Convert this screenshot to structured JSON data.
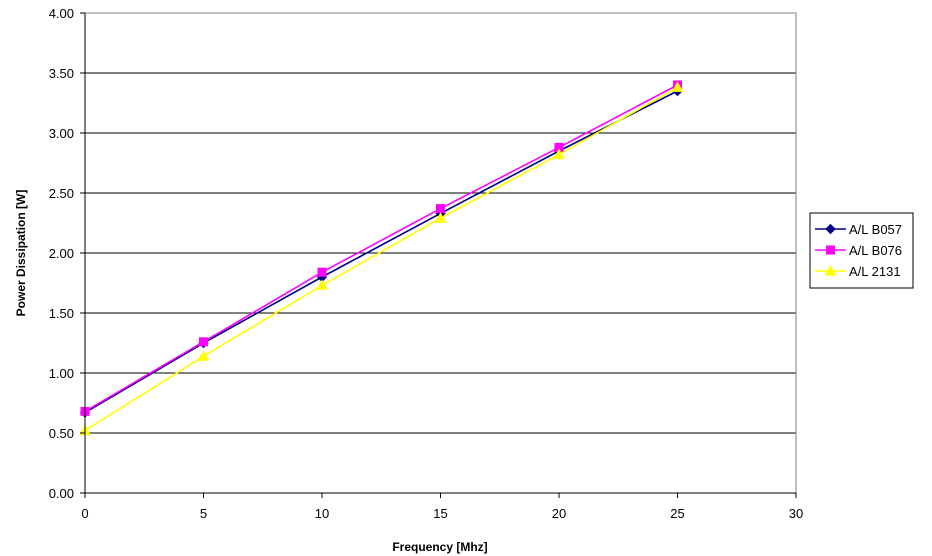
{
  "chart_data": {
    "type": "line",
    "title": "",
    "xlabel": "Frequency [Mhz]",
    "ylabel": "Power Dissipation [W]",
    "xlim": [
      0,
      30
    ],
    "ylim": [
      0,
      4
    ],
    "x_ticks": [
      0,
      5,
      10,
      15,
      20,
      25,
      30
    ],
    "y_ticks": [
      0,
      0.5,
      1,
      1.5,
      2,
      2.5,
      3,
      3.5,
      4
    ],
    "x_tick_labels": [
      "0",
      "5",
      "10",
      "15",
      "20",
      "25",
      "30"
    ],
    "y_tick_labels": [
      "0.00",
      "0.50",
      "1.00",
      "1.50",
      "2.00",
      "2.50",
      "3.00",
      "3.50",
      "4.00"
    ],
    "grid": "horizontal",
    "legend_position": "right",
    "x": [
      0,
      5,
      10,
      15,
      20,
      25
    ],
    "series": [
      {
        "name": "A/L B057",
        "values": [
          0.67,
          1.25,
          1.8,
          2.33,
          2.85,
          3.35
        ],
        "color": "#000080",
        "marker": "diamond"
      },
      {
        "name": "A/L B076",
        "values": [
          0.68,
          1.26,
          1.84,
          2.37,
          2.88,
          3.4
        ],
        "color": "#ff00ff",
        "marker": "square"
      },
      {
        "name": "A/L 2131",
        "values": [
          0.52,
          1.14,
          1.73,
          2.29,
          2.82,
          3.38
        ],
        "color": "#ffff00",
        "marker": "triangle"
      }
    ]
  }
}
